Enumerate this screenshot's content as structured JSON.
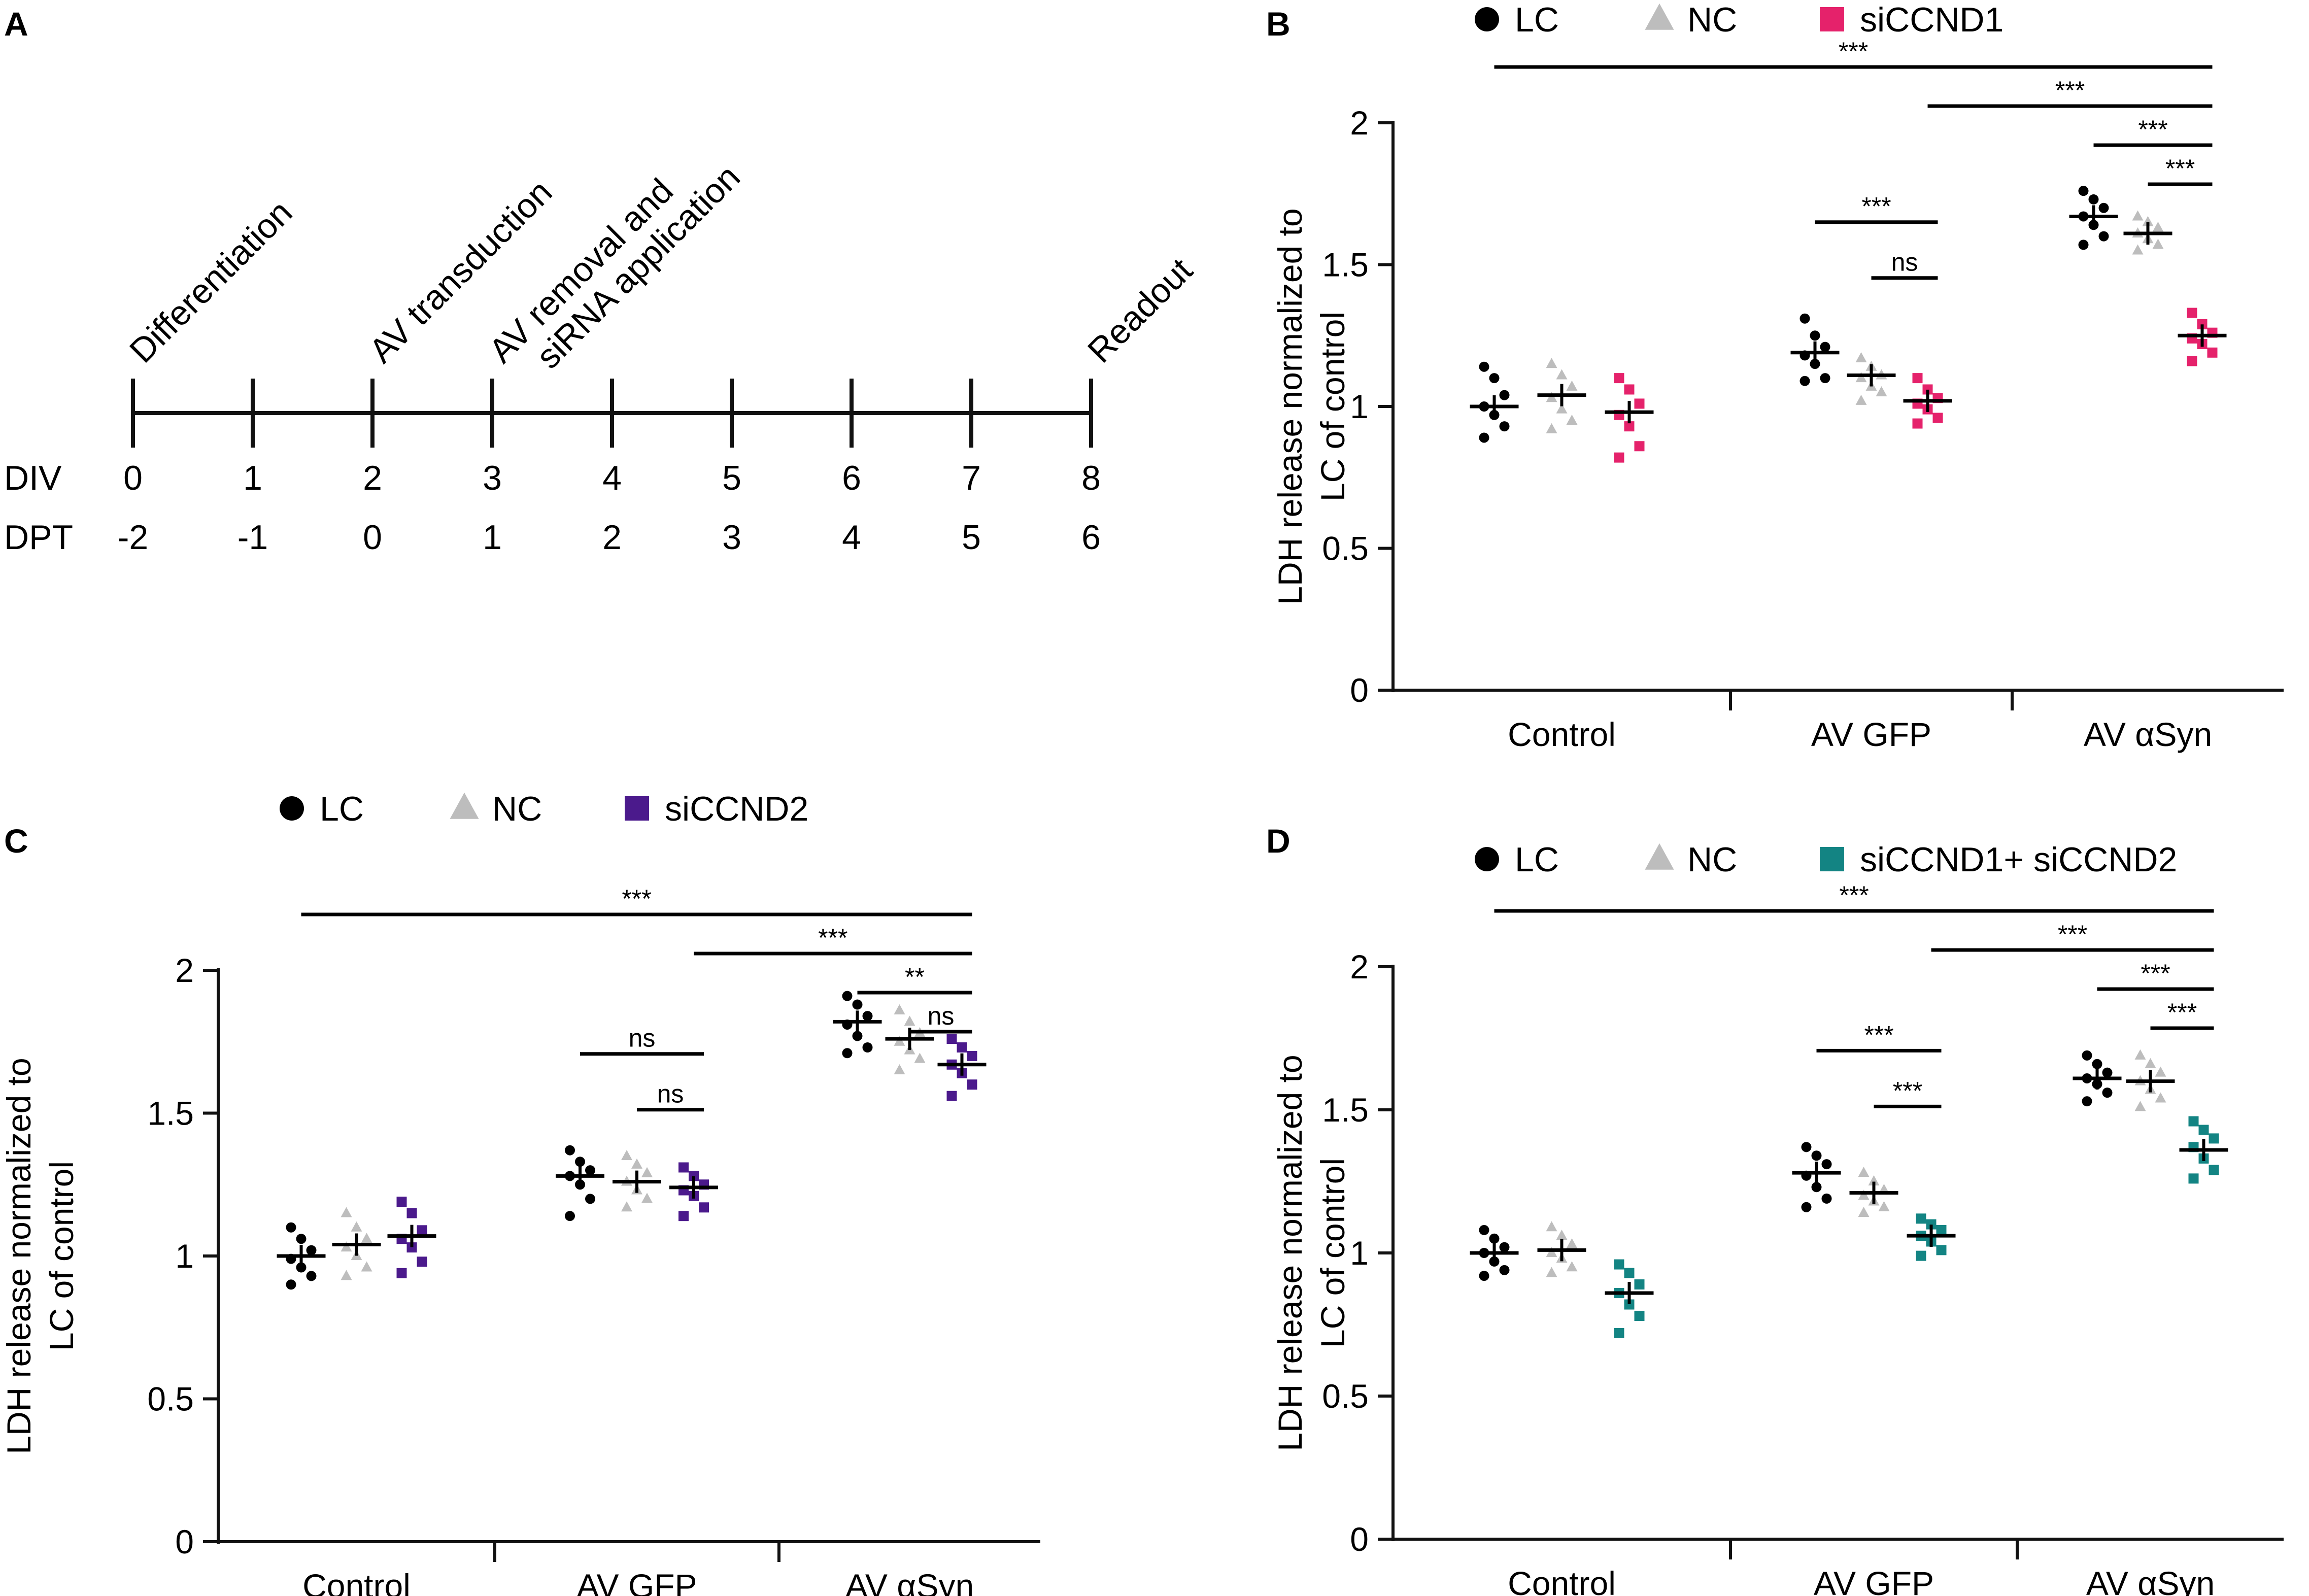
{
  "figure": {
    "panels": [
      "A",
      "B",
      "C",
      "D"
    ]
  },
  "timeline": {
    "row_labels": {
      "div": "DIV",
      "dpt": "DPT"
    },
    "div": [
      "0",
      "1",
      "2",
      "3",
      "4",
      "5",
      "6",
      "7",
      "8"
    ],
    "dpt": [
      "-2",
      "-1",
      "0",
      "1",
      "2",
      "3",
      "4",
      "5",
      "6"
    ],
    "events": [
      {
        "at_day": 0,
        "lines": [
          "Differentiation"
        ]
      },
      {
        "at_day": 2,
        "lines": [
          "AV transduction"
        ]
      },
      {
        "at_day": 3,
        "lines": [
          "AV removal and",
          "siRNA application"
        ]
      },
      {
        "at_day": 8,
        "lines": [
          "Readout"
        ]
      }
    ]
  },
  "colors": {
    "lc": "#000000",
    "nc": "#bdbdbd",
    "siccnd1": "#e5226b",
    "siccnd2": "#4b1a8c",
    "combo": "#138483",
    "axis": "#111111"
  },
  "chart_data": [
    {
      "panel": "B",
      "type": "scatter",
      "ylabel": "LDH release normalized to LC of control",
      "ylim": [
        0,
        2
      ],
      "yticks": [
        "0",
        "0.5",
        "1",
        "1.5",
        "2"
      ],
      "categories": [
        "Control",
        "AV GFP",
        "AV αSyn"
      ],
      "series": [
        {
          "name": "LC",
          "marker": "circle",
          "color": "#000000",
          "values": [
            [
              1.14,
              1.1,
              1.04,
              1.0,
              0.97,
              0.93,
              0.89
            ],
            [
              1.31,
              1.25,
              1.21,
              1.18,
              1.15,
              1.1,
              1.09
            ],
            [
              1.76,
              1.73,
              1.7,
              1.67,
              1.64,
              1.6,
              1.57
            ]
          ],
          "means": [
            1.0,
            1.19,
            1.67
          ]
        },
        {
          "name": "NC",
          "marker": "triangle",
          "color": "#bdbdbd",
          "values": [
            [
              1.15,
              1.11,
              1.07,
              1.03,
              0.99,
              0.95,
              0.92
            ],
            [
              1.17,
              1.14,
              1.11,
              1.1,
              1.07,
              1.05,
              1.02
            ],
            [
              1.67,
              1.65,
              1.63,
              1.61,
              1.59,
              1.57,
              1.55
            ]
          ],
          "means": [
            1.04,
            1.11,
            1.61
          ]
        },
        {
          "name": "siCCND1",
          "marker": "square",
          "color": "#e5226b",
          "values": [
            [
              1.1,
              1.06,
              1.01,
              0.97,
              0.93,
              0.86,
              0.82
            ],
            [
              1.1,
              1.06,
              1.03,
              1.01,
              0.99,
              0.96,
              0.94
            ],
            [
              1.33,
              1.29,
              1.26,
              1.24,
              1.22,
              1.19,
              1.16
            ]
          ],
          "means": [
            0.98,
            1.02,
            1.25
          ]
        }
      ],
      "significance": [
        {
          "from": [
            0,
            0
          ],
          "to": [
            2,
            2
          ],
          "label": "***"
        },
        {
          "from": [
            1,
            2
          ],
          "to": [
            2,
            2
          ],
          "label": "***"
        },
        {
          "from": [
            2,
            0
          ],
          "to": [
            2,
            2
          ],
          "label": "***"
        },
        {
          "from": [
            2,
            1
          ],
          "to": [
            2,
            2
          ],
          "label": "***"
        },
        {
          "from": [
            1,
            0
          ],
          "to": [
            1,
            2
          ],
          "label": "***"
        },
        {
          "from": [
            1,
            1
          ],
          "to": [
            1,
            2
          ],
          "label": "ns"
        }
      ]
    },
    {
      "panel": "C",
      "type": "scatter",
      "ylabel": "LDH release normalized to LC of control",
      "ylim": [
        0,
        2
      ],
      "yticks": [
        "0",
        "0.5",
        "1",
        "1.5",
        "2"
      ],
      "categories": [
        "Control",
        "AV GFP",
        "AV αSyn"
      ],
      "series": [
        {
          "name": "LC",
          "marker": "circle",
          "color": "#000000",
          "values": [
            [
              1.1,
              1.06,
              1.02,
              0.99,
              0.96,
              0.93,
              0.9
            ],
            [
              1.37,
              1.33,
              1.3,
              1.28,
              1.25,
              1.2,
              1.14
            ],
            [
              1.91,
              1.88,
              1.84,
              1.81,
              1.77,
              1.73,
              1.71
            ]
          ],
          "means": [
            1.0,
            1.28,
            1.82
          ]
        },
        {
          "name": "NC",
          "marker": "triangle",
          "color": "#bdbdbd",
          "values": [
            [
              1.15,
              1.1,
              1.06,
              1.03,
              1.0,
              0.96,
              0.93
            ],
            [
              1.35,
              1.32,
              1.29,
              1.26,
              1.23,
              1.2,
              1.17
            ],
            [
              1.86,
              1.82,
              1.78,
              1.75,
              1.72,
              1.69,
              1.65
            ]
          ],
          "means": [
            1.04,
            1.26,
            1.76
          ]
        },
        {
          "name": "siCCND2",
          "marker": "square",
          "color": "#4b1a8c",
          "values": [
            [
              1.19,
              1.15,
              1.09,
              1.06,
              1.03,
              0.98,
              0.94
            ],
            [
              1.31,
              1.28,
              1.25,
              1.23,
              1.21,
              1.17,
              1.14
            ],
            [
              1.76,
              1.73,
              1.7,
              1.67,
              1.64,
              1.6,
              1.56
            ]
          ],
          "means": [
            1.07,
            1.24,
            1.67
          ]
        }
      ],
      "significance": [
        {
          "from": [
            0,
            0
          ],
          "to": [
            2,
            2
          ],
          "label": "***"
        },
        {
          "from": [
            1,
            2
          ],
          "to": [
            2,
            2
          ],
          "label": "***"
        },
        {
          "from": [
            2,
            0
          ],
          "to": [
            2,
            2
          ],
          "label": "**"
        },
        {
          "from": [
            2,
            1
          ],
          "to": [
            2,
            2
          ],
          "label": "ns"
        },
        {
          "from": [
            1,
            0
          ],
          "to": [
            1,
            2
          ],
          "label": "ns"
        },
        {
          "from": [
            1,
            1
          ],
          "to": [
            1,
            2
          ],
          "label": "ns"
        }
      ]
    },
    {
      "panel": "D",
      "type": "scatter",
      "ylabel": "LDH release normalized to LC of control",
      "ylim": [
        0,
        2
      ],
      "yticks": [
        "0",
        "0.5",
        "1",
        "1.5",
        "2"
      ],
      "categories": [
        "Control",
        "AV GFP",
        "AV αSyn"
      ],
      "series": [
        {
          "name": "LC",
          "marker": "circle",
          "color": "#000000",
          "values": [
            [
              1.08,
              1.05,
              1.02,
              1.0,
              0.97,
              0.94,
              0.92
            ],
            [
              1.37,
              1.34,
              1.31,
              1.27,
              1.23,
              1.19,
              1.16
            ],
            [
              1.69,
              1.66,
              1.63,
              1.61,
              1.59,
              1.56,
              1.53
            ]
          ],
          "means": [
            1.0,
            1.28,
            1.61
          ]
        },
        {
          "name": "NC",
          "marker": "triangle",
          "color": "#bdbdbd",
          "values": [
            [
              1.09,
              1.06,
              1.03,
              1.0,
              0.98,
              0.95,
              0.93
            ],
            [
              1.28,
              1.25,
              1.22,
              1.2,
              1.18,
              1.16,
              1.14
            ],
            [
              1.69,
              1.66,
              1.63,
              1.6,
              1.57,
              1.54,
              1.51
            ]
          ],
          "means": [
            1.01,
            1.21,
            1.6
          ]
        },
        {
          "name": "siCCND1+ siCCND2",
          "marker": "square",
          "color": "#138483",
          "values": [
            [
              0.96,
              0.93,
              0.89,
              0.86,
              0.82,
              0.78,
              0.72
            ],
            [
              1.12,
              1.1,
              1.08,
              1.06,
              1.04,
              1.01,
              0.99
            ],
            [
              1.46,
              1.43,
              1.4,
              1.37,
              1.33,
              1.29,
              1.26
            ]
          ],
          "means": [
            0.86,
            1.06,
            1.36
          ]
        }
      ],
      "significance": [
        {
          "from": [
            0,
            0
          ],
          "to": [
            2,
            2
          ],
          "label": "***"
        },
        {
          "from": [
            1,
            2
          ],
          "to": [
            2,
            2
          ],
          "label": "***"
        },
        {
          "from": [
            2,
            0
          ],
          "to": [
            2,
            2
          ],
          "label": "***"
        },
        {
          "from": [
            2,
            1
          ],
          "to": [
            2,
            2
          ],
          "label": "***"
        },
        {
          "from": [
            1,
            0
          ],
          "to": [
            1,
            2
          ],
          "label": "***"
        },
        {
          "from": [
            1,
            1
          ],
          "to": [
            1,
            2
          ],
          "label": "***"
        }
      ]
    }
  ]
}
